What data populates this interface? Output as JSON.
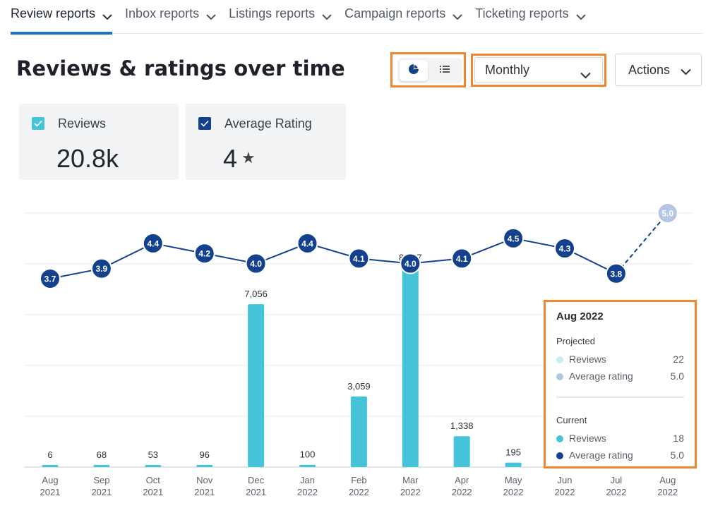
{
  "tabs": [
    {
      "label": "Review reports",
      "active": true
    },
    {
      "label": "Inbox reports",
      "active": false
    },
    {
      "label": "Listings reports",
      "active": false
    },
    {
      "label": "Campaign reports",
      "active": false
    },
    {
      "label": "Ticketing reports",
      "active": false
    }
  ],
  "header": {
    "title": "Reviews & ratings over time",
    "period_select": "Monthly",
    "actions_label": "Actions"
  },
  "view_toggle": {
    "selected": "pie-chart-icon",
    "options": [
      "pie-chart-icon",
      "list-icon"
    ]
  },
  "metrics": [
    {
      "label": "Reviews",
      "value": "20.8k",
      "checked": true,
      "color": "#45c3d8"
    },
    {
      "label": "Average Rating",
      "value": "4",
      "suffix": "★",
      "checked": true,
      "color": "#14418e"
    }
  ],
  "colors": {
    "accent": "#1b6fc9",
    "bar": "#45c3d8",
    "line": "#14418e",
    "projected": "#b3c6e4",
    "highlight_border": "#f0862e"
  },
  "chart_data": {
    "type": "bar",
    "categories": [
      [
        "Aug",
        "2021"
      ],
      [
        "Sep",
        "2021"
      ],
      [
        "Oct",
        "2021"
      ],
      [
        "Nov",
        "2021"
      ],
      [
        "Dec",
        "2021"
      ],
      [
        "Jan",
        "2022"
      ],
      [
        "Feb",
        "2022"
      ],
      [
        "Mar",
        "2022"
      ],
      [
        "Apr",
        "2022"
      ],
      [
        "May",
        "2022"
      ],
      [
        "Jun",
        "2022"
      ],
      [
        "Jul",
        "2022"
      ],
      [
        "Aug",
        "2022"
      ]
    ],
    "series": [
      {
        "name": "Reviews",
        "type": "bar",
        "values": [
          6,
          68,
          53,
          96,
          7056,
          100,
          3059,
          8637,
          1338,
          195,
          null,
          null,
          null
        ],
        "labels": [
          "6",
          "68",
          "53",
          "96",
          "7,056",
          "100",
          "3,059",
          "8,637",
          "1,338",
          "195",
          "",
          "",
          ""
        ]
      },
      {
        "name": "Average Rating",
        "type": "line",
        "values": [
          3.7,
          3.9,
          4.4,
          4.2,
          4.0,
          4.4,
          4.1,
          4.0,
          4.1,
          4.5,
          4.3,
          3.8,
          5.0
        ],
        "labels": [
          "3.7",
          "3.9",
          "4.4",
          "4.2",
          "4.0",
          "4.4",
          "4.1",
          "4.0",
          "4.1",
          "4.5",
          "4.3",
          "3.8",
          "5.0"
        ],
        "projected_index": 12
      }
    ],
    "bar_ylim": [
      0,
      11000
    ],
    "line_ylim": [
      3.0,
      5.0
    ],
    "grid": true
  },
  "tooltip": {
    "title": "Aug 2022",
    "projected": {
      "heading": "Projected",
      "rows": [
        {
          "label": "Reviews",
          "value": "22",
          "color": "#c9ecf2"
        },
        {
          "label": "Average rating",
          "value": "5.0",
          "color": "#b3c6e4"
        }
      ]
    },
    "current": {
      "heading": "Current",
      "rows": [
        {
          "label": "Reviews",
          "value": "18",
          "color": "#45c3d8"
        },
        {
          "label": "Average rating",
          "value": "5.0",
          "color": "#14418e"
        }
      ]
    }
  }
}
